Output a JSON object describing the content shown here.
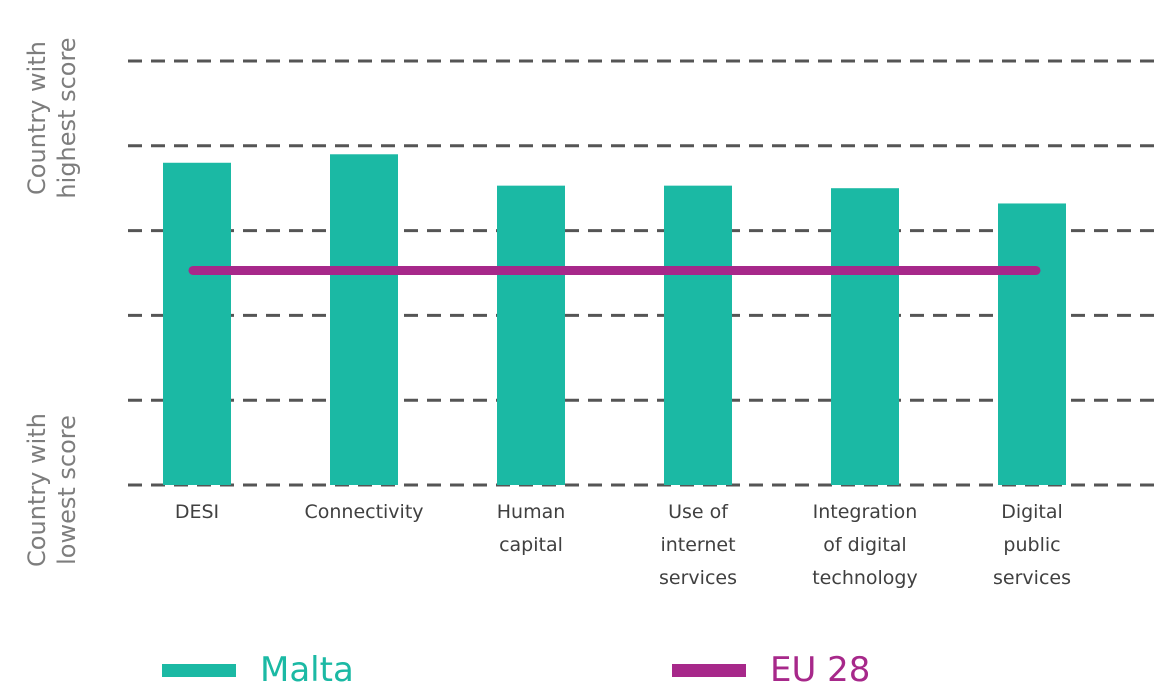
{
  "chart_data": {
    "type": "bar",
    "y_axis": {
      "top_label": "Country with\nhighest score",
      "bottom_label": "Country with\nlowest score",
      "ylim": [
        0,
        5
      ],
      "gridlines": [
        0,
        1,
        2,
        3,
        4,
        5
      ],
      "grid_style": "dashed"
    },
    "categories": [
      "DESI",
      "Connectivity",
      "Human\ncapital",
      "Use of\ninternet\nservices",
      "Integration\nof digital\ntechnology",
      "Digital\npublic\nservices"
    ],
    "series": [
      {
        "name": "Malta",
        "type": "bar",
        "color": "#1bb9a4",
        "values": [
          3.8,
          3.9,
          3.53,
          3.53,
          3.5,
          3.32
        ]
      },
      {
        "name": "EU 28",
        "type": "line",
        "color": "#a7288a",
        "value": 2.53
      }
    ],
    "legend": {
      "placement": "bottom"
    }
  }
}
